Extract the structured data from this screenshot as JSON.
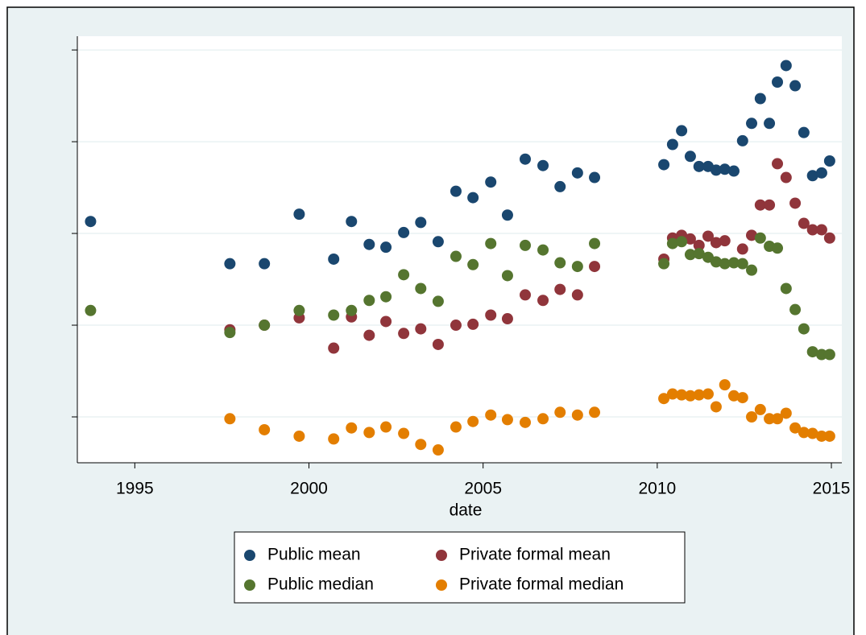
{
  "chart_data": {
    "type": "scatter",
    "xlabel": "date",
    "xlim": [
      1993.35,
      2015.3
    ],
    "xticks": [
      1995,
      2000,
      2005,
      2010,
      2015
    ],
    "ylim": [
      0.5,
      5.15
    ],
    "yticks": [
      1,
      2,
      3,
      4,
      5
    ],
    "grid": true,
    "series": [
      {
        "name": "Public mean",
        "color": "#1a476f",
        "x": [
          1993.73,
          1997.73,
          1998.72,
          1999.72,
          2000.71,
          2001.22,
          2001.73,
          2002.21,
          2002.72,
          2003.21,
          2003.71,
          2004.22,
          2004.71,
          2005.22,
          2005.7,
          2006.21,
          2006.72,
          2007.21,
          2007.71,
          2008.2,
          2010.19,
          2010.44,
          2010.7,
          2010.95,
          2011.2,
          2011.46,
          2011.69,
          2011.94,
          2012.2,
          2012.45,
          2012.71,
          2012.96,
          2013.22,
          2013.45,
          2013.7,
          2013.96,
          2014.21,
          2014.46,
          2014.72,
          2014.95
        ],
        "values": [
          3.13,
          2.67,
          2.67,
          3.21,
          2.72,
          3.13,
          2.88,
          2.85,
          3.01,
          3.12,
          2.91,
          3.46,
          3.39,
          3.56,
          3.2,
          3.81,
          3.74,
          3.51,
          3.66,
          3.61,
          3.75,
          3.97,
          4.12,
          3.84,
          3.73,
          3.73,
          3.69,
          3.7,
          3.68,
          4.01,
          4.2,
          4.47,
          4.2,
          4.65,
          4.83,
          4.61,
          4.1,
          3.63,
          3.66,
          3.79
        ]
      },
      {
        "name": "Private formal mean",
        "color": "#90353b",
        "x": [
          1997.73,
          1998.72,
          1999.72,
          2000.71,
          2001.22,
          2001.73,
          2002.21,
          2002.72,
          2003.21,
          2003.71,
          2004.22,
          2004.71,
          2005.22,
          2005.7,
          2006.21,
          2006.72,
          2007.21,
          2007.71,
          2008.2,
          2010.19,
          2010.44,
          2010.7,
          2010.95,
          2011.2,
          2011.46,
          2011.69,
          2011.94,
          2012.45,
          2012.71,
          2012.96,
          2013.22,
          2013.45,
          2013.7,
          2013.96,
          2014.21,
          2014.46,
          2014.72,
          2014.95
        ],
        "values": [
          1.95,
          2.0,
          2.08,
          1.75,
          2.09,
          1.89,
          2.04,
          1.91,
          1.96,
          1.79,
          2.0,
          2.01,
          2.11,
          2.07,
          2.33,
          2.27,
          2.39,
          2.33,
          2.64,
          2.72,
          2.95,
          2.98,
          2.94,
          2.87,
          2.97,
          2.9,
          2.92,
          2.83,
          2.98,
          3.31,
          3.31,
          3.76,
          3.61,
          3.33,
          3.11,
          3.04,
          3.04,
          2.95
        ]
      },
      {
        "name": "Public median",
        "color": "#55752f",
        "x": [
          1993.73,
          1997.73,
          1998.72,
          1999.72,
          2000.71,
          2001.22,
          2001.73,
          2002.21,
          2002.72,
          2003.21,
          2003.71,
          2004.22,
          2004.71,
          2005.22,
          2005.7,
          2006.21,
          2006.72,
          2007.21,
          2007.71,
          2008.2,
          2010.19,
          2010.44,
          2010.7,
          2010.95,
          2011.2,
          2011.46,
          2011.69,
          2011.94,
          2012.2,
          2012.45,
          2012.71,
          2012.96,
          2013.22,
          2013.45,
          2013.7,
          2013.96,
          2014.21,
          2014.46,
          2014.72,
          2014.95
        ],
        "values": [
          2.16,
          1.92,
          2.0,
          2.16,
          2.11,
          2.16,
          2.27,
          2.31,
          2.55,
          2.4,
          2.26,
          2.75,
          2.66,
          2.89,
          2.54,
          2.87,
          2.82,
          2.68,
          2.64,
          2.89,
          2.67,
          2.89,
          2.91,
          2.77,
          2.78,
          2.74,
          2.69,
          2.67,
          2.68,
          2.67,
          2.6,
          2.95,
          2.86,
          2.84,
          2.4,
          2.17,
          1.96,
          1.71,
          1.68,
          1.68
        ]
      },
      {
        "name": "Private formal median",
        "color": "#e37e00",
        "x": [
          1997.73,
          1998.72,
          1999.72,
          2000.71,
          2001.22,
          2001.73,
          2002.21,
          2002.72,
          2003.21,
          2003.71,
          2004.22,
          2004.71,
          2005.22,
          2005.7,
          2006.21,
          2006.72,
          2007.21,
          2007.71,
          2008.2,
          2010.19,
          2010.44,
          2010.7,
          2010.95,
          2011.2,
          2011.46,
          2011.69,
          2011.94,
          2012.2,
          2012.45,
          2012.71,
          2012.96,
          2013.22,
          2013.45,
          2013.7,
          2013.96,
          2014.21,
          2014.46,
          2014.72,
          2014.95
        ],
        "values": [
          0.98,
          0.86,
          0.79,
          0.76,
          0.88,
          0.83,
          0.89,
          0.82,
          0.7,
          0.64,
          0.89,
          0.95,
          1.02,
          0.97,
          0.94,
          0.98,
          1.05,
          1.02,
          1.05,
          1.2,
          1.25,
          1.24,
          1.23,
          1.24,
          1.25,
          1.11,
          1.35,
          1.23,
          1.21,
          1.0,
          1.08,
          0.98,
          0.98,
          1.04,
          0.88,
          0.83,
          0.82,
          0.79,
          0.79
        ]
      }
    ]
  }
}
